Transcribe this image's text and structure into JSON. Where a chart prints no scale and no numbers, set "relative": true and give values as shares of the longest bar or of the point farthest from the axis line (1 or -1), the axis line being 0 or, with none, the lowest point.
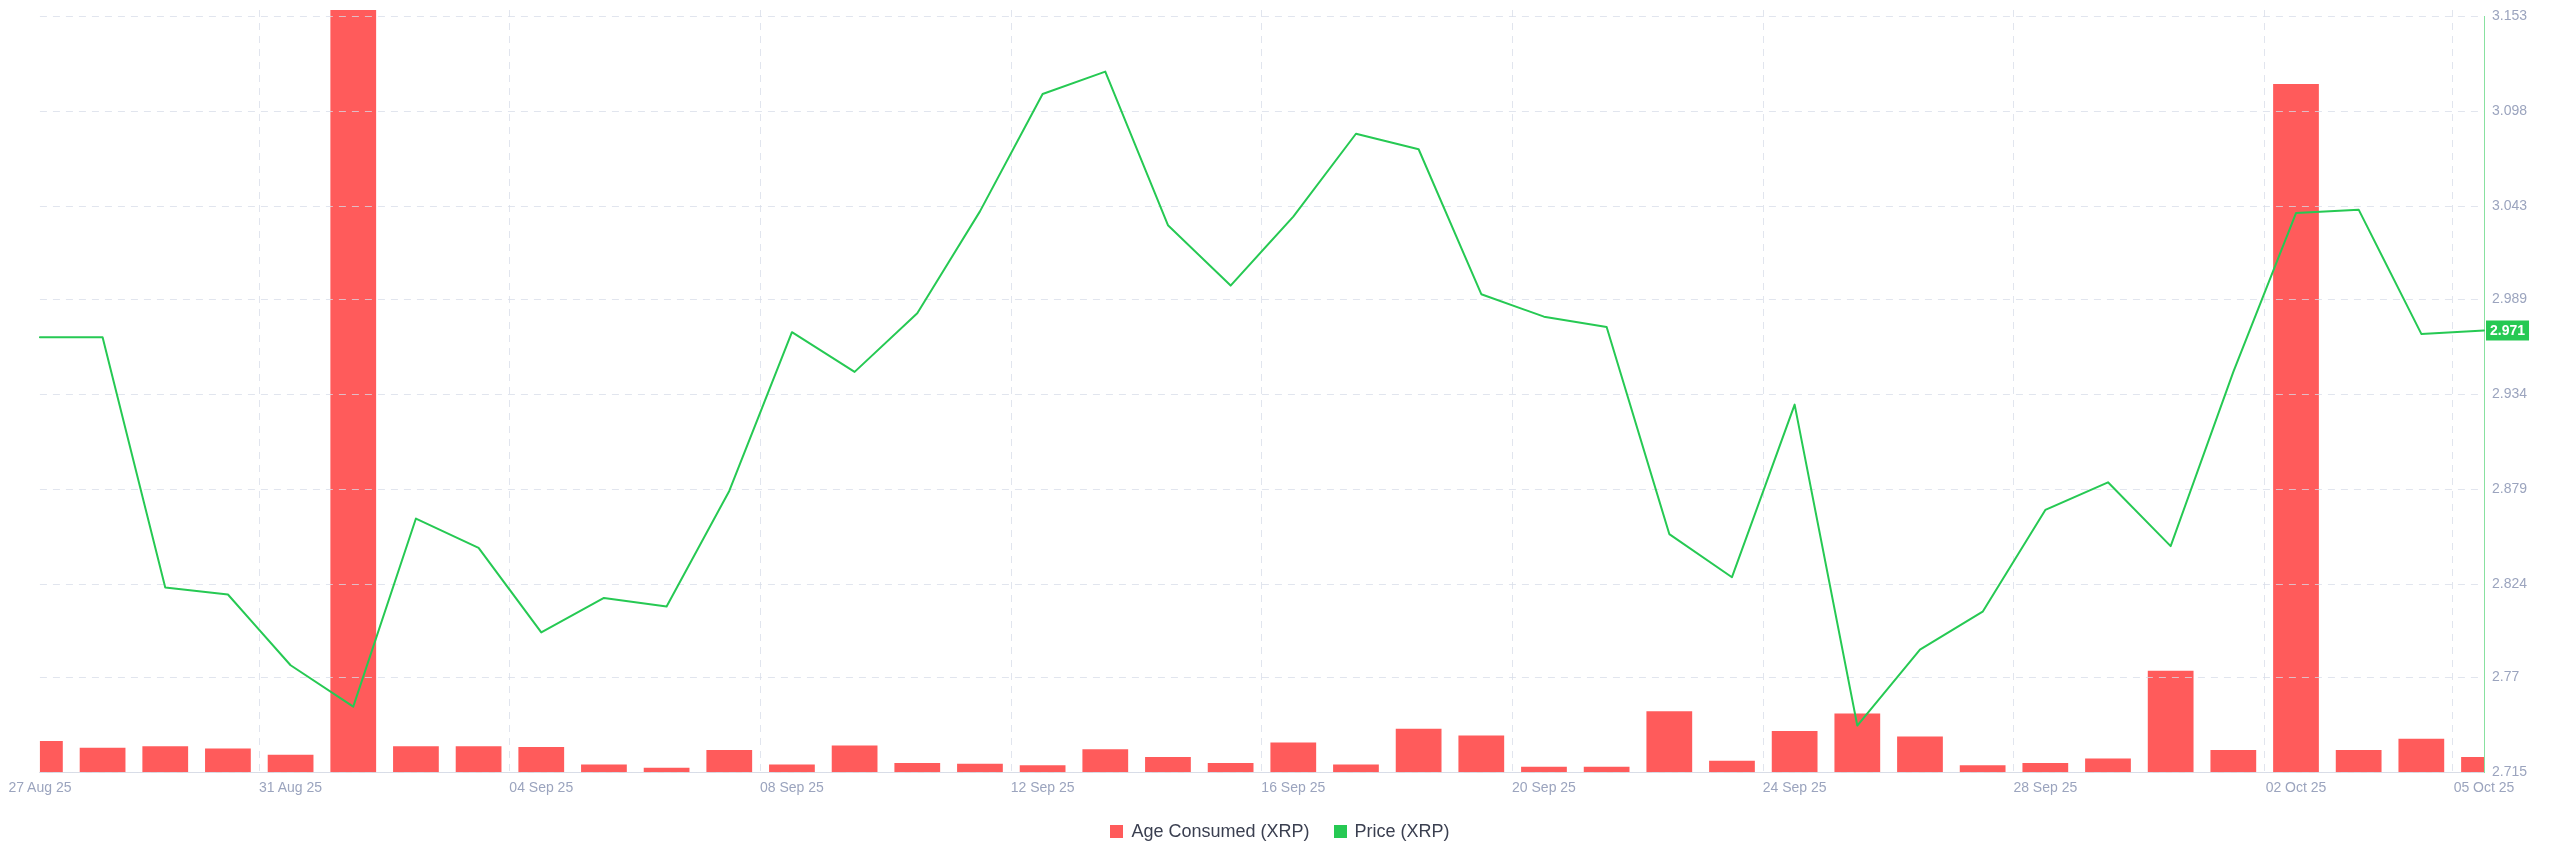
{
  "chart_data": [
    {
      "type": "bar",
      "categories": [
        "27 Aug 25",
        null,
        null,
        null,
        "31 Aug 25",
        null,
        null,
        null,
        "04 Sep 25",
        null,
        null,
        null,
        "08 Sep 25",
        null,
        null,
        null,
        "12 Sep 25",
        null,
        null,
        null,
        "16 Sep 25",
        null,
        null,
        null,
        "20 Sep 25",
        null,
        null,
        null,
        "24 Sep 25",
        null,
        null,
        null,
        "28 Sep 25",
        null,
        null,
        null,
        "02 Oct 25",
        null,
        null,
        "05 Oct 25"
      ],
      "series": [
        {
          "name": "Age Consumed (XRP)",
          "color": "#ff5b5b",
          "values": [
            0.041,
            0.032,
            0.034,
            0.031,
            0.023,
            1,
            0.034,
            0.034,
            0.033,
            0.01,
            0.006,
            0.029,
            0.01,
            0.035,
            0.012,
            0.011,
            0.009,
            0.03,
            0.02,
            0.012,
            0.039,
            0.01,
            0.057,
            0.048,
            0.007,
            0.007,
            0.08,
            0.015,
            0.054,
            0.077,
            0.047,
            0.009,
            0.012,
            0.018,
            0.133,
            0.029,
            0.903,
            0.029,
            0.044,
            0.02
          ]
        }
      ],
      "relative": true,
      "grid": "x",
      "legend": "bottom"
    },
    {
      "type": "line",
      "categories": [
        null,
        null,
        null,
        null,
        null,
        null,
        null,
        null,
        null,
        null,
        null,
        null,
        null,
        null,
        null,
        null,
        null,
        null,
        null,
        null,
        null,
        null,
        null,
        null,
        null,
        null,
        null,
        null,
        null,
        null,
        null,
        null,
        null,
        null,
        null,
        null,
        null,
        null,
        null,
        null
      ],
      "series": [
        {
          "name": "Price (XRP)",
          "color": "#26c953",
          "values": [
            2.967,
            2.967,
            2.822,
            2.818,
            2.777,
            2.753,
            2.862,
            2.845,
            2.796,
            2.816,
            2.811,
            2.878,
            2.97,
            2.947,
            2.981,
            3.04,
            3.108,
            3.121,
            3.032,
            2.997,
            3.037,
            3.085,
            3.076,
            2.992,
            2.979,
            2.973,
            2.853,
            2.828,
            2.928,
            2.742,
            2.786,
            2.808,
            2.867,
            2.883,
            2.846,
            2.947,
            3.039,
            3.041,
            2.969,
            2.971
          ],
          "value_labels": [
            null,
            null,
            null,
            null,
            null,
            null,
            null,
            null,
            null,
            null,
            null,
            null,
            null,
            null,
            null,
            null,
            null,
            null,
            null,
            null,
            null,
            null,
            null,
            null,
            null,
            null,
            null,
            null,
            null,
            null,
            null,
            null,
            null,
            null,
            null,
            null,
            null,
            null,
            null,
            "2.971"
          ]
        }
      ],
      "ylim": [
        2.715,
        3.153
      ],
      "yticks": [
        2.715,
        2.77,
        2.824,
        2.879,
        2.934,
        2.989,
        3.043,
        3.098,
        3.153
      ],
      "grid": "y",
      "tick_labels": "y",
      "legend": "bottom",
      "marker": "none"
    }
  ]
}
